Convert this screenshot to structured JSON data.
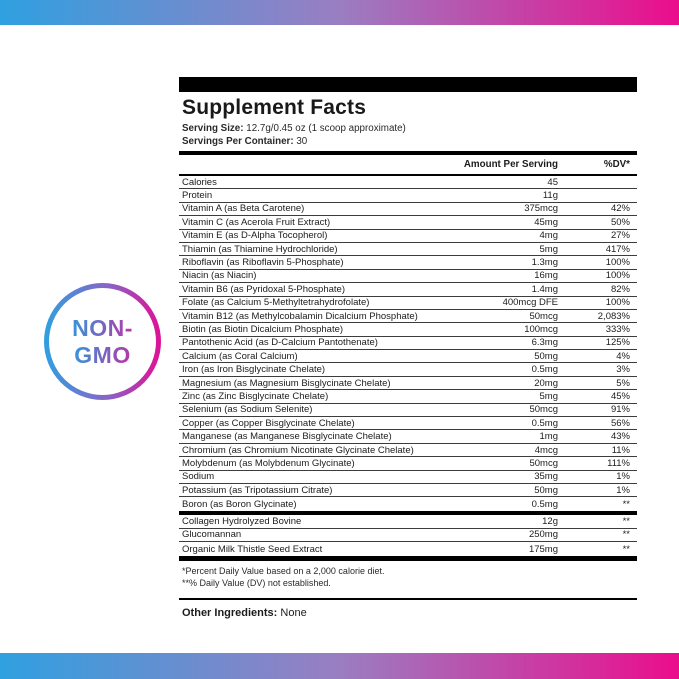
{
  "colors": {
    "gradient_start": "#2FA0E0",
    "gradient_mid": "#9A7EC2",
    "gradient_end": "#EB0D8C",
    "badge_text_start": "#3E8FD6",
    "badge_text_end": "#B03CAB"
  },
  "badge": {
    "line1": "NON-",
    "line2": "GMO"
  },
  "panel": {
    "title": "Supplement Facts",
    "serving_size_label": "Serving Size:",
    "serving_size_value": " 12.7g/0.45 oz (1 scoop approximate)",
    "servings_per_container_label": "Servings Per Container:",
    "servings_per_container_value": " 30",
    "columns": {
      "amount": "Amount Per Serving",
      "dv": "%DV*"
    },
    "rows": [
      {
        "name": "Calories",
        "amount": "45",
        "dv": ""
      },
      {
        "name": "Protein",
        "amount": "11g",
        "dv": ""
      },
      {
        "name": "Vitamin A (as Beta Carotene)",
        "amount": "375mcg",
        "dv": "42%"
      },
      {
        "name": "Vitamin C (as Acerola Fruit Extract)",
        "amount": "45mg",
        "dv": "50%"
      },
      {
        "name": "Vitamin E (as D-Alpha Tocopherol)",
        "amount": "4mg",
        "dv": "27%"
      },
      {
        "name": "Thiamin (as Thiamine Hydrochloride)",
        "amount": "5mg",
        "dv": "417%"
      },
      {
        "name": "Riboflavin (as Riboflavin 5-Phosphate)",
        "amount": "1.3mg",
        "dv": "100%"
      },
      {
        "name": "Niacin (as Niacin)",
        "amount": "16mg",
        "dv": "100%"
      },
      {
        "name": "Vitamin B6 (as Pyridoxal 5-Phosphate)",
        "amount": "1.4mg",
        "dv": "82%"
      },
      {
        "name": "Folate (as Calcium 5-Methyltetrahydrofolate)",
        "amount": "400mcg DFE",
        "dv": "100%"
      },
      {
        "name": "Vitamin B12 (as Methylcobalamin Dicalcium Phosphate)",
        "amount": "50mcg",
        "dv": "2,083%"
      },
      {
        "name": "Biotin (as Biotin Dicalcium Phosphate)",
        "amount": "100mcg",
        "dv": "333%"
      },
      {
        "name": "Pantothenic Acid (as D-Calcium Pantothenate)",
        "amount": "6.3mg",
        "dv": "125%"
      },
      {
        "name": "Calcium (as Coral Calcium)",
        "amount": "50mg",
        "dv": "4%"
      },
      {
        "name": "Iron (as Iron Bisglycinate Chelate)",
        "amount": "0.5mg",
        "dv": "3%"
      },
      {
        "name": "Magnesium (as Magnesium Bisglycinate Chelate)",
        "amount": "20mg",
        "dv": "5%"
      },
      {
        "name": "Zinc (as Zinc Bisglycinate Chelate)",
        "amount": "5mg",
        "dv": "45%"
      },
      {
        "name": "Selenium (as Sodium Selenite)",
        "amount": "50mcg",
        "dv": "91%"
      },
      {
        "name": "Copper (as Copper Bisglycinate Chelate)",
        "amount": "0.5mg",
        "dv": "56%"
      },
      {
        "name": "Manganese (as Manganese Bisglycinate Chelate)",
        "amount": "1mg",
        "dv": "43%"
      },
      {
        "name": "Chromium (as Chromium Nicotinate Glycinate Chelate)",
        "amount": "4mcg",
        "dv": "11%"
      },
      {
        "name": "Molybdenum (as Molybdenum Glycinate)",
        "amount": "50mcg",
        "dv": "111%"
      },
      {
        "name": "Sodium",
        "amount": "35mg",
        "dv": "1%"
      },
      {
        "name": "Potassium (as Tripotassium Citrate)",
        "amount": "50mg",
        "dv": "1%"
      },
      {
        "name": "Boron (as Boron Glycinate)",
        "amount": "0.5mg",
        "dv": "**"
      }
    ],
    "extra_rows": [
      {
        "name": "Collagen Hydrolyzed Bovine",
        "amount": "12g",
        "dv": "**"
      },
      {
        "name": "Glucomannan",
        "amount": "250mg",
        "dv": "**"
      },
      {
        "name": "Organic Milk Thistle Seed Extract",
        "amount": "175mg",
        "dv": "**"
      }
    ],
    "footnotes": [
      "*Percent Daily Value based on a 2,000 calorie diet.",
      "**% Daily Value (DV) not established."
    ],
    "other_ingredients_label": "Other Ingredients:",
    "other_ingredients_value": " None"
  }
}
